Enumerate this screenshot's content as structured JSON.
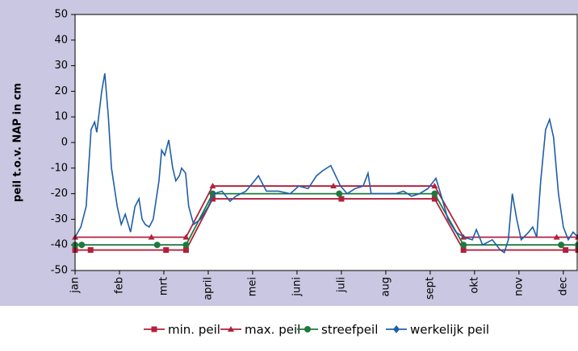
{
  "chart_data": {
    "type": "line",
    "y_label": "peil t.o.v. NAP in cm",
    "xlim": [
      0,
      11.33
    ],
    "xticks": [
      {
        "value": 0,
        "label": "jan"
      },
      {
        "value": 1,
        "label": "feb"
      },
      {
        "value": 2,
        "label": "mrt"
      },
      {
        "value": 3,
        "label": "april"
      },
      {
        "value": 4,
        "label": "mei"
      },
      {
        "value": 5,
        "label": "juni"
      },
      {
        "value": 6,
        "label": "juli"
      },
      {
        "value": 7,
        "label": "aug"
      },
      {
        "value": 8,
        "label": "sept"
      },
      {
        "value": 9,
        "label": "okt"
      },
      {
        "value": 10,
        "label": "nov"
      },
      {
        "value": 11,
        "label": "dec"
      }
    ],
    "ylim": [
      -50,
      50
    ],
    "yticks": [
      -50,
      -40,
      -30,
      -20,
      -10,
      0,
      10,
      20,
      30,
      40,
      50
    ],
    "series": [
      {
        "name": "min. peil",
        "color": "#b3203c",
        "marker": "square",
        "x": [
          0,
          0.35,
          2.05,
          2.5,
          3.1,
          6.0,
          8.1,
          8.75,
          11.05,
          11.33
        ],
        "values": [
          -42,
          -42,
          -42,
          -42,
          -22,
          -22,
          -22,
          -42,
          -42,
          -42
        ]
      },
      {
        "name": "max. peil",
        "color": "#b3203c",
        "marker": "triangle",
        "x": [
          0,
          1.72,
          2.5,
          3.1,
          5.82,
          8.1,
          8.75,
          10.85,
          11.33
        ],
        "values": [
          -37,
          -37,
          -37,
          -17,
          -17,
          -17,
          -37,
          -37,
          -37
        ]
      },
      {
        "name": "streefpeil",
        "color": "#1e7a3c",
        "marker": "circle",
        "x": [
          0,
          0.15,
          1.85,
          2.5,
          3.1,
          5.95,
          8.1,
          8.75,
          10.95,
          11.33
        ],
        "values": [
          -40,
          -40,
          -40,
          -40,
          -20,
          -20,
          -20,
          -40,
          -40,
          -40
        ]
      },
      {
        "name": "werkelijk peil",
        "color": "#1f5ea8",
        "marker": "diamond",
        "x": [
          0,
          0.13,
          0.25,
          0.36,
          0.44,
          0.49,
          0.6,
          0.67,
          0.75,
          0.82,
          0.95,
          1.04,
          1.13,
          1.25,
          1.35,
          1.44,
          1.51,
          1.58,
          1.67,
          1.76,
          1.89,
          1.95,
          2.02,
          2.11,
          2.2,
          2.27,
          2.35,
          2.4,
          2.49,
          2.56,
          2.67,
          2.82,
          3.0,
          3.13,
          3.31,
          3.49,
          3.62,
          3.85,
          4.04,
          4.13,
          4.31,
          4.58,
          4.85,
          5.04,
          5.25,
          5.44,
          5.58,
          5.76,
          5.87,
          5.98,
          6.13,
          6.31,
          6.49,
          6.6,
          6.67,
          6.85,
          7.04,
          7.22,
          7.4,
          7.58,
          7.76,
          7.95,
          8.13,
          8.27,
          8.4,
          8.58,
          8.76,
          8.95,
          9.04,
          9.18,
          9.4,
          9.58,
          9.67,
          9.76,
          9.85,
          9.95,
          10.05,
          10.22,
          10.31,
          10.4,
          10.49,
          10.6,
          10.69,
          10.78,
          10.89,
          11.0,
          11.11,
          11.22,
          11.33
        ],
        "values": [
          -37,
          -33,
          -25,
          5,
          8,
          4,
          20,
          27,
          10,
          -10,
          -25,
          -32,
          -28,
          -35,
          -25,
          -22,
          -30,
          -32,
          -33,
          -30,
          -15,
          -3,
          -5,
          1,
          -10,
          -15,
          -13,
          -10,
          -12,
          -25,
          -32,
          -30,
          -25,
          -20,
          -19,
          -23,
          -21,
          -19,
          -15,
          -13,
          -19,
          -19,
          -20,
          -17,
          -18,
          -13,
          -11,
          -9,
          -13,
          -17,
          -20,
          -18,
          -17,
          -12,
          -20,
          -20,
          -20,
          -20,
          -19,
          -21,
          -20,
          -18,
          -14,
          -22,
          -30,
          -35,
          -37,
          -38,
          -34,
          -40,
          -38,
          -42,
          -43,
          -38,
          -20,
          -30,
          -38,
          -35,
          -33,
          -37,
          -15,
          5,
          9,
          2,
          -20,
          -33,
          -38,
          -35,
          -37
        ]
      }
    ]
  }
}
